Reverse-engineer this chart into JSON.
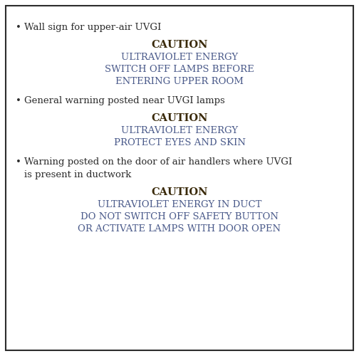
{
  "bg_color": "#ffffff",
  "border_color": "#2c2c2c",
  "body_text_color": "#2c2c2c",
  "caution_color": "#3a2a0a",
  "sign_text_color": "#4a5a8a",
  "sections": [
    {
      "bullet": "Wall sign for upper-air UVGI",
      "caution": "CAUTION",
      "sign_lines": [
        "ULTRAVIOLET ENERGY",
        "SWITCH OFF LAMPS BEFORE",
        "ENTERING UPPER ROOM"
      ]
    },
    {
      "bullet": "General warning posted near UVGI lamps",
      "caution": "CAUTION",
      "sign_lines": [
        "ULTRAVIOLET ENERGY",
        "PROTECT EYES AND SKIN"
      ]
    },
    {
      "bullet_lines": [
        "Warning posted on the door of air handlers where UVGI",
        "is present in ductwork"
      ],
      "caution": "CAUTION",
      "sign_lines": [
        "ULTRAVIOLET ENERGY IN DUCT",
        "DO NOT SWITCH OFF SAFETY BUTTON",
        "OR ACTIVATE LAMPS WITH DOOR OPEN"
      ]
    }
  ],
  "bullet_fontsize": 9.5,
  "caution_fontsize": 10.5,
  "sign_fontsize": 9.5,
  "fig_width": 5.04,
  "fig_height": 5.0,
  "dpi": 100
}
